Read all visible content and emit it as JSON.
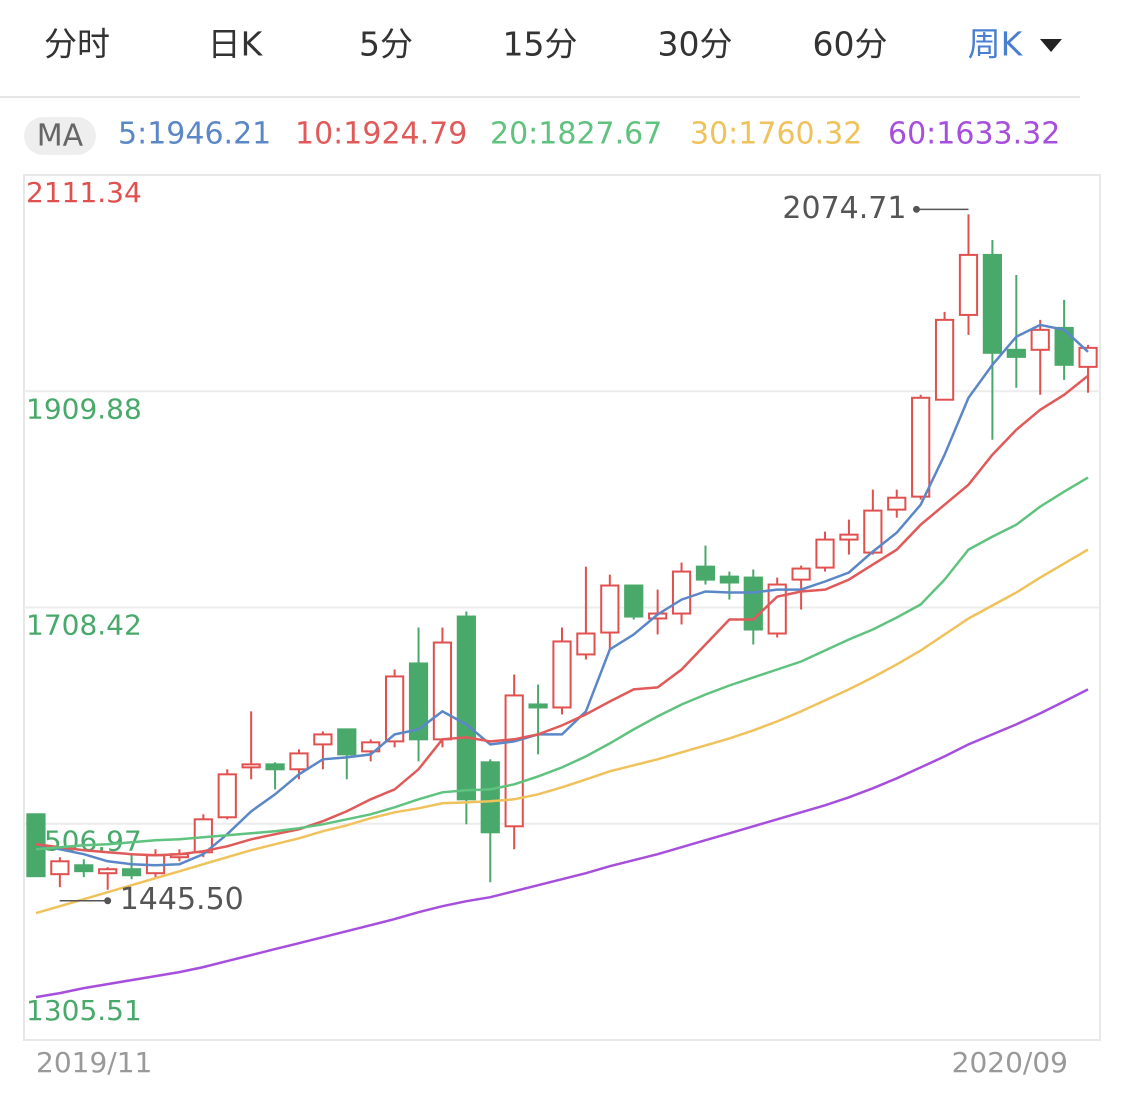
{
  "tabs": [
    {
      "label": "分时"
    },
    {
      "label": "日K"
    },
    {
      "label": "5分"
    },
    {
      "label": "15分"
    },
    {
      "label": "30分"
    },
    {
      "label": "60分"
    },
    {
      "label": "周K",
      "selected": true
    }
  ],
  "chart_data": {
    "type": "candlestick",
    "ma_badge": "MA",
    "categories": [
      "2019/11",
      null,
      null,
      null,
      null,
      null,
      null,
      null,
      null,
      null,
      null,
      null,
      null,
      null,
      null,
      null,
      null,
      null,
      null,
      null,
      null,
      null,
      null,
      null,
      null,
      null,
      null,
      null,
      null,
      null,
      null,
      null,
      null,
      null,
      null,
      null,
      null,
      null,
      null,
      null,
      null,
      null,
      null,
      null,
      "2020/09"
    ],
    "open": [
      1515.8,
      1460.0,
      1468.3,
      1460.9,
      1464.6,
      1460.9,
      1475.8,
      1480.4,
      1513.0,
      1559.5,
      1562.3,
      1557.7,
      1580.9,
      1594.9,
      1574.4,
      1583.7,
      1656.3,
      1585.6,
      1700.0,
      1564.2,
      1504.6,
      1618.1,
      1615.3,
      1664.7,
      1685.1,
      1728.9,
      1698.2,
      1702.8,
      1746.5,
      1737.2,
      1736.3,
      1684.2,
      1734.4,
      1745.6,
      1771.7,
      1759.6,
      1799.6,
      1811.7,
      1902.0,
      1981.0,
      2036.9,
      1948.5,
      1948.5,
      1968.9,
      1932.6
    ],
    "high": [
      1515.8,
      1475.8,
      1473.9,
      1466.5,
      1478.6,
      1483.2,
      1483.2,
      1515.8,
      1557.7,
      1611.6,
      1564.2,
      1576.3,
      1593.0,
      1594.9,
      1585.6,
      1650.7,
      1689.8,
      1689.8,
      1704.7,
      1567.0,
      1646.0,
      1636.7,
      1689.8,
      1746.5,
      1739.1,
      1728.9,
      1725.1,
      1750.3,
      1766.1,
      1741.9,
      1743.8,
      1736.3,
      1747.5,
      1779.1,
      1790.3,
      1818.2,
      1818.2,
      1906.6,
      1983.8,
      2074.71,
      2050.8,
      2018.2,
      1976.4,
      1995.0,
      1953.1
    ],
    "low": [
      1458.1,
      1447.9,
      1457.2,
      1445.5,
      1455.3,
      1455.3,
      1472.0,
      1475.8,
      1511.1,
      1548.4,
      1539.0,
      1548.4,
      1557.7,
      1548.4,
      1565.1,
      1578.1,
      1565.1,
      1578.1,
      1506.5,
      1452.5,
      1483.2,
      1571.6,
      1608.8,
      1660.0,
      1669.3,
      1697.2,
      1683.3,
      1692.6,
      1729.8,
      1715.8,
      1674.0,
      1680.5,
      1706.5,
      1741.9,
      1757.7,
      1757.7,
      1792.1,
      1808.9,
      1902.0,
      1962.4,
      1864.7,
      1913.1,
      1906.6,
      1920.5,
      1908.5
    ],
    "close": [
      1458.1,
      1472.0,
      1462.8,
      1464.6,
      1459.0,
      1477.6,
      1478.6,
      1511.1,
      1553.0,
      1562.3,
      1557.7,
      1572.5,
      1590.2,
      1571.6,
      1582.8,
      1644.2,
      1585.6,
      1675.8,
      1529.7,
      1499.0,
      1626.5,
      1615.3,
      1676.8,
      1684.2,
      1728.9,
      1700.0,
      1702.8,
      1741.9,
      1734.4,
      1731.7,
      1687.9,
      1729.8,
      1744.7,
      1771.7,
      1776.3,
      1798.7,
      1810.7,
      1903.8,
      1976.4,
      2036.9,
      1945.7,
      1941.9,
      1967.1,
      1934.5,
      1950.3
    ],
    "up_color": "#e0504f",
    "down_color": "#49a96a",
    "series": [
      {
        "name": "5:1946.21",
        "color": "#5b87c7",
        "values": [
          1487.9,
          1483.2,
          1478.6,
          1472.0,
          1469.3,
          1468.3,
          1469.3,
          1478.6,
          1497.2,
          1518.6,
          1534.4,
          1553.0,
          1567.0,
          1568.8,
          1571.6,
          1590.2,
          1594.9,
          1611.6,
          1599.5,
          1580.9,
          1583.7,
          1590.2,
          1590.2,
          1611.6,
          1669.3,
          1683.3,
          1701.9,
          1715.8,
          1723.3,
          1722.4,
          1722.4,
          1725.1,
          1725.1,
          1732.6,
          1741.0,
          1760.5,
          1778.2,
          1804.2,
          1850.8,
          1903.8,
          1934.5,
          1960.6,
          1971.7,
          1967.1,
          1946.6
        ]
      },
      {
        "name": "10:1924.79",
        "color": "#e05a5a",
        "values": [
          1487.9,
          1485.1,
          1482.3,
          1480.4,
          1478.6,
          1477.6,
          1478.6,
          1481.4,
          1486.0,
          1492.5,
          1497.2,
          1501.8,
          1509.3,
          1518.6,
          1529.7,
          1539.0,
          1557.7,
          1585.6,
          1587.4,
          1583.7,
          1585.6,
          1590.2,
          1598.6,
          1608.8,
          1620.9,
          1632.1,
          1634.0,
          1650.7,
          1674.0,
          1697.2,
          1697.2,
          1718.6,
          1723.3,
          1725.1,
          1734.4,
          1748.4,
          1762.4,
          1785.6,
          1804.2,
          1822.8,
          1850.8,
          1874.0,
          1892.6,
          1906.6,
          1924.3
        ]
      },
      {
        "name": "20:1827.67",
        "color": "#5fc37f",
        "values": [
          1483.2,
          1485.1,
          1486.9,
          1487.9,
          1489.7,
          1491.6,
          1492.5,
          1494.4,
          1496.2,
          1498.1,
          1500.0,
          1502.8,
          1506.5,
          1511.1,
          1515.8,
          1522.3,
          1529.7,
          1536.3,
          1538.1,
          1539.0,
          1543.7,
          1551.1,
          1559.5,
          1569.7,
          1581.8,
          1594.9,
          1607.0,
          1618.1,
          1627.4,
          1635.8,
          1643.3,
          1650.7,
          1658.1,
          1668.4,
          1678.6,
          1687.9,
          1699.1,
          1711.2,
          1734.4,
          1762.4,
          1774.5,
          1785.6,
          1802.4,
          1816.3,
          1829.4
        ]
      },
      {
        "name": "30:1760.32",
        "color": "#efc25b",
        "values": [
          1423.7,
          1430.2,
          1436.7,
          1443.2,
          1449.7,
          1456.2,
          1462.7,
          1469.3,
          1475.8,
          1482.3,
          1487.9,
          1493.4,
          1500.0,
          1505.5,
          1512.1,
          1517.6,
          1521.4,
          1526.0,
          1526.9,
          1527.9,
          1529.7,
          1534.4,
          1540.9,
          1548.3,
          1555.8,
          1561.4,
          1567.0,
          1573.5,
          1580.0,
          1586.5,
          1593.9,
          1602.3,
          1611.6,
          1621.9,
          1632.1,
          1643.3,
          1655.4,
          1668.4,
          1683.3,
          1698.2,
          1710.3,
          1722.4,
          1736.3,
          1749.3,
          1762.4
        ]
      },
      {
        "name": "60:1633.32",
        "color": "#a64fdc",
        "values": [
          1345.5,
          1349.2,
          1353.9,
          1357.6,
          1361.3,
          1365.0,
          1368.8,
          1373.4,
          1379.0,
          1384.6,
          1390.2,
          1395.7,
          1401.3,
          1406.9,
          1412.5,
          1418.1,
          1424.6,
          1430.2,
          1434.8,
          1438.5,
          1444.1,
          1449.7,
          1455.3,
          1460.9,
          1467.4,
          1473.0,
          1478.6,
          1485.1,
          1491.6,
          1498.1,
          1504.6,
          1511.1,
          1517.6,
          1524.2,
          1531.6,
          1540.0,
          1549.3,
          1559.5,
          1569.7,
          1580.9,
          1590.2,
          1599.5,
          1609.8,
          1620.9,
          1632.1
        ]
      }
    ],
    "high_label": "2074.71",
    "low_label": "1445.50",
    "ylim": [
      1305.51,
      2111.34
    ],
    "yticks": [
      1305.51,
      1506.97,
      1708.42,
      1909.88,
      2111.34
    ],
    "top_tick_color": "#e0504f",
    "tick_color": "#49a96a",
    "grid": true
  }
}
